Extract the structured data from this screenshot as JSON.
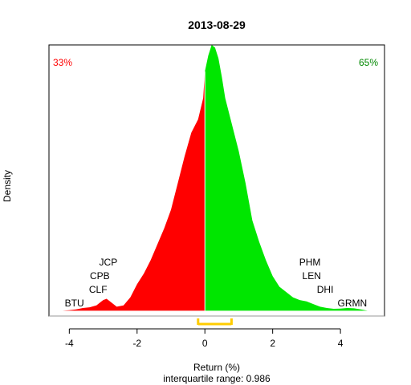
{
  "chart_data": {
    "type": "area",
    "title": "2013-08-29",
    "xlabel": "Return (%)",
    "subtitle": "interquartile range: 0.986",
    "ylabel": "Density",
    "x_ticks": [
      -4,
      -2,
      0,
      2,
      4
    ],
    "xlim": [
      -4.6,
      5.3
    ],
    "ylim": [
      -0.02,
      1.0
    ],
    "pct_negative": "33%",
    "pct_positive": "65%",
    "split_at": 0,
    "negative_color": "#ff0000",
    "positive_color": "#00e600",
    "iqr_color": "#ffcc00",
    "iqr": [
      -0.2,
      0.786
    ],
    "density": {
      "x": [
        -4.2,
        -4.0,
        -3.8,
        -3.6,
        -3.4,
        -3.2,
        -3.0,
        -2.9,
        -2.8,
        -2.6,
        -2.4,
        -2.2,
        -2.0,
        -1.8,
        -1.6,
        -1.4,
        -1.2,
        -1.0,
        -0.8,
        -0.6,
        -0.4,
        -0.2,
        -0.05,
        0.0,
        0.1,
        0.2,
        0.3,
        0.4,
        0.5,
        0.6,
        0.8,
        1.0,
        1.2,
        1.4,
        1.6,
        1.8,
        2.0,
        2.2,
        2.4,
        2.6,
        2.8,
        3.0,
        3.2,
        3.4,
        3.6,
        3.8,
        4.0,
        4.2,
        4.4,
        4.6,
        4.8
      ],
      "y": [
        0.0,
        0.002,
        0.005,
        0.01,
        0.013,
        0.02,
        0.04,
        0.045,
        0.035,
        0.015,
        0.02,
        0.05,
        0.1,
        0.14,
        0.19,
        0.25,
        0.31,
        0.38,
        0.48,
        0.58,
        0.67,
        0.72,
        0.8,
        0.9,
        0.96,
        1.0,
        0.99,
        0.95,
        0.88,
        0.8,
        0.7,
        0.6,
        0.48,
        0.34,
        0.26,
        0.19,
        0.13,
        0.09,
        0.07,
        0.05,
        0.04,
        0.035,
        0.025,
        0.015,
        0.01,
        0.007,
        0.008,
        0.01,
        0.009,
        0.005,
        0.0
      ]
    },
    "labels_left": [
      {
        "text": "JCP",
        "x": -2.85,
        "level": 3
      },
      {
        "text": "CPB",
        "x": -3.1,
        "level": 2
      },
      {
        "text": "CLF",
        "x": -3.15,
        "level": 1
      },
      {
        "text": "BTU",
        "x": -3.85,
        "level": 0
      }
    ],
    "labels_right": [
      {
        "text": "PHM",
        "x": 3.1,
        "level": 3
      },
      {
        "text": "LEN",
        "x": 3.15,
        "level": 2
      },
      {
        "text": "DHI",
        "x": 3.55,
        "level": 1
      },
      {
        "text": "GRMN",
        "x": 4.35,
        "level": 0
      }
    ]
  }
}
